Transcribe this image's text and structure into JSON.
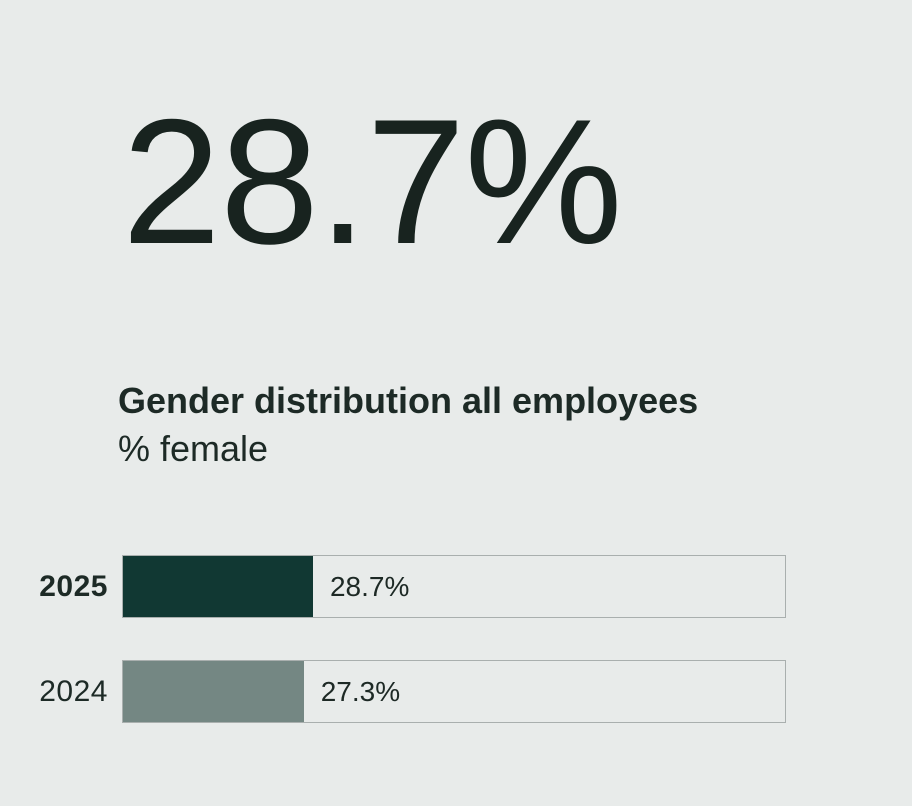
{
  "headline": {
    "value": "28.7%"
  },
  "colors": {
    "background": "#e8ebea",
    "text_primary": "#1d2a26",
    "track_border": "#a9afae",
    "track_background": "#e8ebea",
    "bar_2025": "#113833",
    "bar_2024": "#748783"
  },
  "chart_data": {
    "type": "bar",
    "orientation": "horizontal",
    "title": "Gender distribution all employees",
    "subtitle": "% female",
    "categories": [
      "2025",
      "2024"
    ],
    "values": [
      28.7,
      27.3
    ],
    "value_labels": [
      "28.7%",
      "27.3%"
    ],
    "xlim": [
      0,
      100
    ],
    "grid": false,
    "legend": false,
    "bar_colors": [
      "#113833",
      "#748783"
    ],
    "highlighted_category": "2025"
  }
}
